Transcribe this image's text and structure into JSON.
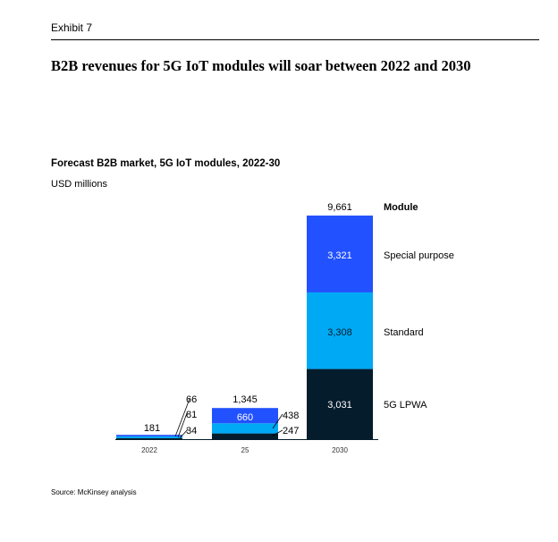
{
  "header": {
    "exhibit": "Exhibit 7",
    "headline": "B2B revenues for 5G IoT modules will soar between 2022 and 2030"
  },
  "chart_data": {
    "type": "bar",
    "stacked": true,
    "title": "Forecast B2B market, 5G IoT modules, 2022-30",
    "unit": "USD millions",
    "categories": [
      "2022",
      "25",
      "2030"
    ],
    "legend_title": "Module",
    "series": [
      {
        "name": "5G LPWA",
        "values": [
          34,
          247,
          3031
        ],
        "labels": [
          "34",
          "247",
          "3,031"
        ],
        "color": "#051c2c"
      },
      {
        "name": "Standard",
        "values": [
          81,
          438,
          3308
        ],
        "labels": [
          "81",
          "438",
          "3,308"
        ],
        "color": "#00a9f4"
      },
      {
        "name": "Special purpose",
        "values": [
          66,
          660,
          3321
        ],
        "labels": [
          "66",
          "660",
          "3,321"
        ],
        "color": "#2251ff"
      }
    ],
    "totals": [
      181,
      1345,
      9661
    ],
    "total_labels": [
      "181",
      "1,345",
      "9,661"
    ],
    "grid": false,
    "legend_position": "right"
  },
  "footer": {
    "source": "Source: McKinsey analysis"
  }
}
